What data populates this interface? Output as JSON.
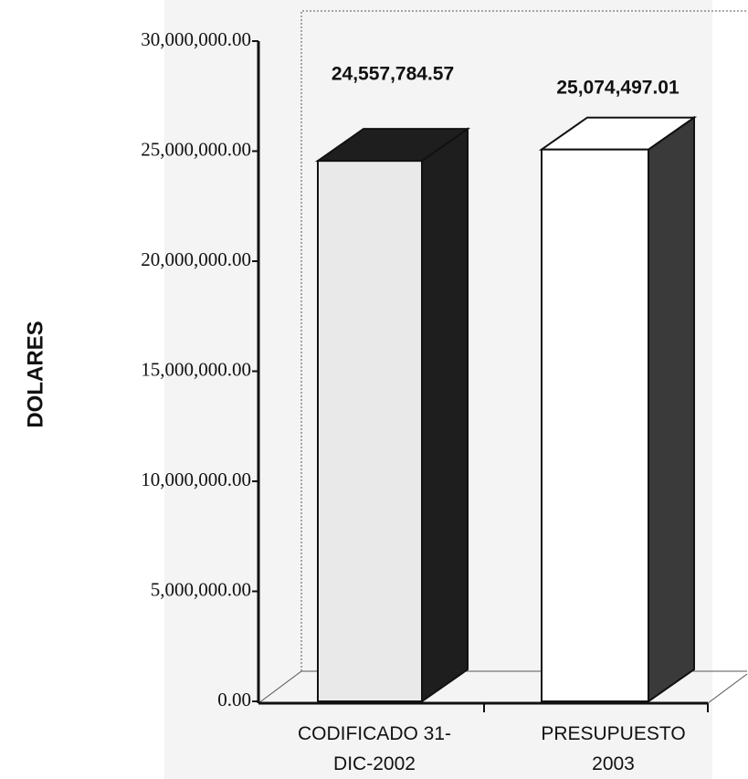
{
  "chart_data": {
    "type": "bar3d",
    "y_label": "DOLARES",
    "categories": [
      "CODIFICADO 31-DIC-2002",
      "PRESUPUESTO 2003"
    ],
    "values": [
      24557784.57,
      25074497.01
    ],
    "value_labels": [
      "24,557,784.57",
      "25,074,497.01"
    ],
    "colors": [
      "#e9e9e9",
      "#ffffff"
    ],
    "side_colors": [
      "#1e1e1e",
      "#3a3a3a"
    ],
    "ylim": [
      0,
      30000000
    ],
    "yticks": [
      {
        "value": 0,
        "label": "0.00"
      },
      {
        "value": 5000000,
        "label": "5,000,000.00"
      },
      {
        "value": 10000000,
        "label": "10,000,000.00"
      },
      {
        "value": 15000000,
        "label": "15,000,000.00"
      },
      {
        "value": 20000000,
        "label": "20,000,000.00"
      },
      {
        "value": 25000000,
        "label": "25,000,000.00"
      },
      {
        "value": 30000000,
        "label": "30,000,000.00"
      }
    ]
  }
}
